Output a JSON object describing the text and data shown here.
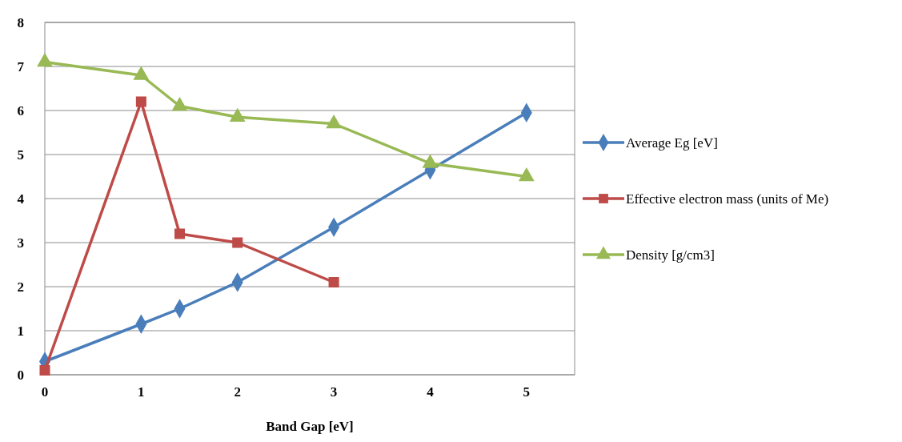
{
  "chart_data": {
    "type": "line",
    "xlabel": "Band Gap [eV]",
    "xlim": [
      0,
      5.5
    ],
    "xticks": [
      0,
      1,
      2,
      3,
      4,
      5
    ],
    "ylim": [
      0,
      8
    ],
    "yticks": [
      0,
      1,
      2,
      3,
      4,
      5,
      6,
      7,
      8
    ],
    "grid": "y",
    "legend": "right",
    "series": [
      {
        "name": "Average Eg [eV]",
        "color": "#4a7ebb",
        "marker": "diamond",
        "x": [
          0,
          1,
          1.4,
          2,
          3,
          4,
          5
        ],
        "values": [
          0.3,
          1.15,
          1.5,
          2.1,
          3.35,
          4.65,
          5.95
        ]
      },
      {
        "name": "Effective electron mass (units of Me)",
        "color": "#be4b48",
        "marker": "square",
        "x": [
          0,
          1,
          1.4,
          2,
          3
        ],
        "values": [
          0.1,
          6.2,
          3.2,
          3.0,
          2.1
        ]
      },
      {
        "name": "Density [g/cm3]",
        "color": "#98b954",
        "marker": "triangle",
        "x": [
          0,
          1,
          1.4,
          2,
          3,
          4,
          5
        ],
        "values": [
          7.1,
          6.8,
          6.1,
          5.85,
          5.7,
          4.8,
          4.5
        ]
      }
    ]
  }
}
